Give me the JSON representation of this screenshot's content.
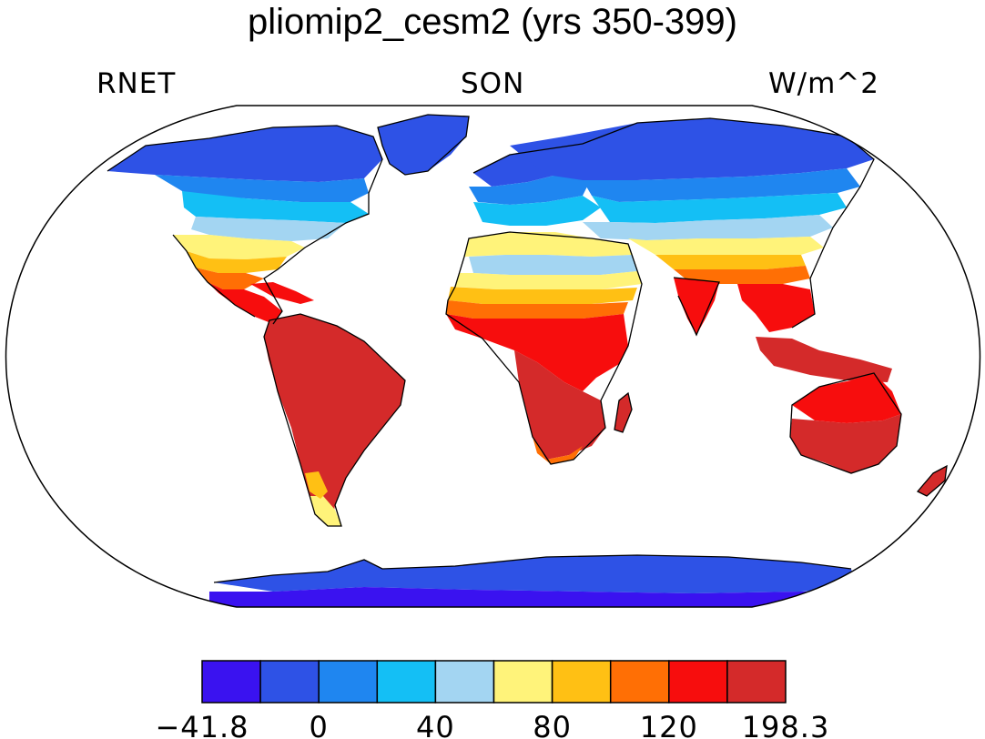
{
  "title": "pliomip2_cesm2 (yrs 350-399)",
  "variable": "RNET",
  "season": "SON",
  "units": "W/m^2",
  "colorbar": {
    "colors": [
      "#3a12f0",
      "#2e52e6",
      "#1f86f0",
      "#14bff5",
      "#a3d5f2",
      "#fff37a",
      "#ffc014",
      "#ff6f05",
      "#f70d0d",
      "#d42a2a"
    ],
    "labels": [
      "−41.8",
      "0",
      "40",
      "80",
      "120",
      "198.3"
    ]
  }
}
